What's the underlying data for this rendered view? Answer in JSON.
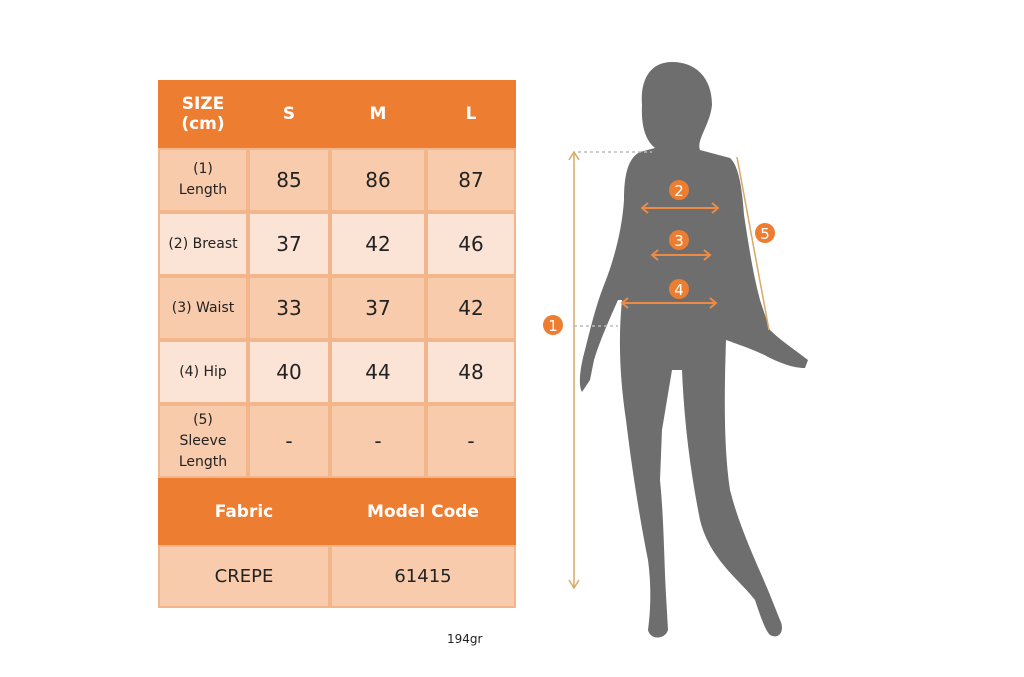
{
  "table": {
    "header": [
      "SIZE\n(cm)",
      "S",
      "M",
      "L"
    ],
    "rows": [
      {
        "label": "(1)\nLength",
        "values": [
          "85",
          "86",
          "87"
        ]
      },
      {
        "label": "(2) Breast",
        "values": [
          "37",
          "42",
          "46"
        ]
      },
      {
        "label": "(3) Waist",
        "values": [
          "33",
          "37",
          "42"
        ]
      },
      {
        "label": "(4) Hip",
        "values": [
          "40",
          "44",
          "48"
        ]
      },
      {
        "label": "(5)\nSleeve\nLength",
        "values": [
          "-",
          "-",
          "-"
        ]
      }
    ],
    "footer_headers": [
      "Fabric",
      "Model Code"
    ],
    "footer_values": [
      "CREPE",
      "61415"
    ]
  },
  "weight": "194gr",
  "figure": {
    "markers": [
      "1",
      "2",
      "3",
      "4",
      "5"
    ]
  },
  "colors": {
    "orange": "#ED7D31",
    "cell_dark": "#F8CBAD",
    "cell_light": "#FBE4D5",
    "silhouette": "#6E6E6E",
    "guide": "#D9A866"
  }
}
